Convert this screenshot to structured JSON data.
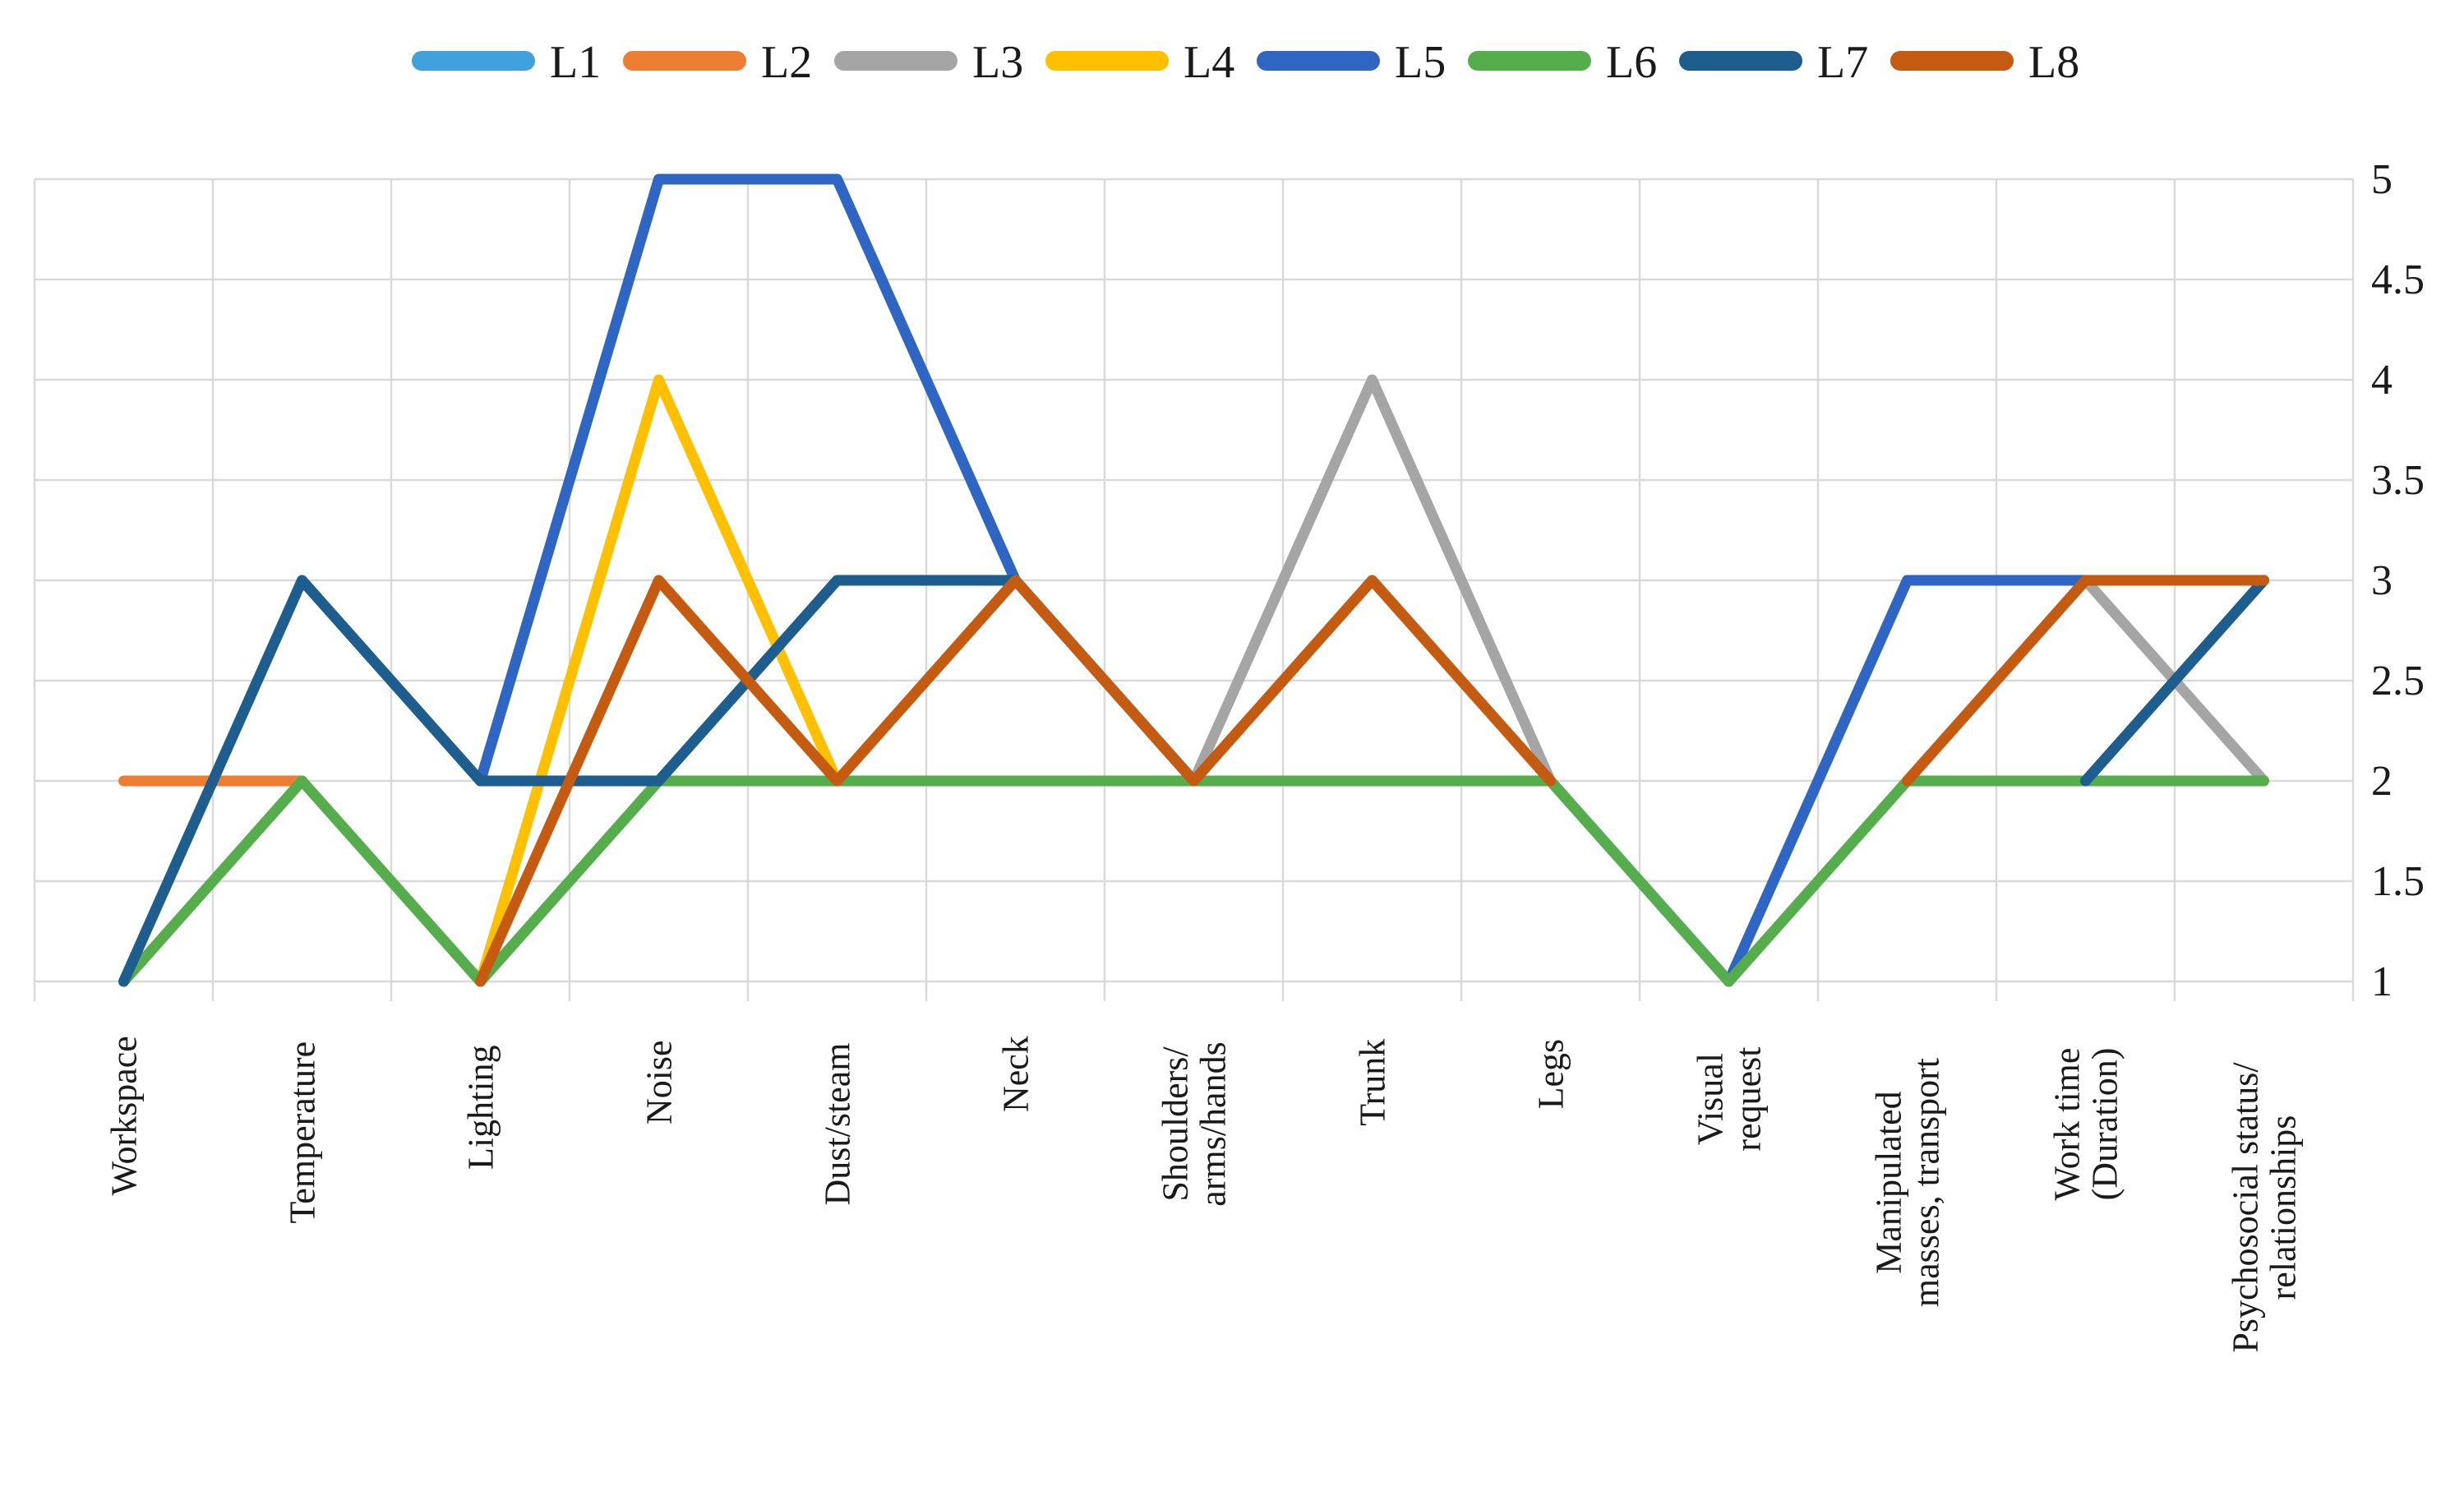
{
  "figure": {
    "background_color": "#FFFFFF",
    "gridline_color": "#D9D9D9",
    "text_color": "#1A1A1A"
  },
  "legend": {
    "position": "top",
    "items": [
      {
        "label": "L1",
        "color": "#41A1DC"
      },
      {
        "label": "L2",
        "color": "#ED7D31"
      },
      {
        "label": "L3",
        "color": "#A5A5A5"
      },
      {
        "label": "L4",
        "color": "#FFC000"
      },
      {
        "label": "L5",
        "color": "#2F66C4"
      },
      {
        "label": "L6",
        "color": "#55AD4B"
      },
      {
        "label": "L7",
        "color": "#1D5E8F"
      },
      {
        "label": "L8",
        "color": "#C55A11"
      }
    ]
  },
  "chart_data": {
    "type": "line",
    "title": "",
    "xlabel": "",
    "ylabel": "",
    "categories": [
      "Workspace",
      "Temperature",
      "Lighting",
      "Noise",
      "Dust/steam",
      "Neck",
      "Shoulders/ arms/hands",
      "Trunk",
      "Legs",
      "Visual request",
      "Manipulated masses, transport",
      "Work time (Duration)",
      "Psychosocial status/ relationships"
    ],
    "categories_display": [
      [
        "Workspace"
      ],
      [
        "Temperature"
      ],
      [
        "Lighting"
      ],
      [
        "Noise"
      ],
      [
        "Dust/steam"
      ],
      [
        "Neck"
      ],
      [
        "Shoulders/",
        "arms/hands"
      ],
      [
        "Trunk"
      ],
      [
        "Legs"
      ],
      [
        "Visual",
        "request"
      ],
      [
        "Manipulated",
        "masses, transport"
      ],
      [
        "Work time",
        "(Duration)"
      ],
      [
        "Psychosocial status/",
        "relationships"
      ]
    ],
    "series": [
      {
        "name": "L1",
        "color": "#41A1DC",
        "values": [
          null,
          null,
          2,
          5,
          5,
          3,
          2,
          2,
          2,
          1,
          3,
          3,
          3
        ]
      },
      {
        "name": "L2",
        "color": "#ED7D31",
        "values": [
          2,
          2,
          null,
          null,
          null,
          null,
          null,
          null,
          null,
          null,
          null,
          null,
          null
        ]
      },
      {
        "name": "L3",
        "color": "#A5A5A5",
        "values": [
          null,
          null,
          null,
          null,
          null,
          3,
          2,
          4,
          2,
          null,
          2,
          3,
          2
        ]
      },
      {
        "name": "L4",
        "color": "#FFC000",
        "values": [
          null,
          null,
          1,
          4,
          2,
          null,
          null,
          null,
          null,
          null,
          null,
          null,
          null
        ]
      },
      {
        "name": "L5",
        "color": "#2F66C4",
        "values": [
          null,
          null,
          2,
          5,
          5,
          3,
          2,
          2,
          2,
          1,
          3,
          3,
          3
        ]
      },
      {
        "name": "L6",
        "color": "#55AD4B",
        "values": [
          1,
          2,
          1,
          2,
          2,
          2,
          2,
          2,
          2,
          1,
          2,
          2,
          2
        ]
      },
      {
        "name": "L7",
        "color": "#1D5E8F",
        "values": [
          1,
          3,
          2,
          2,
          3,
          3,
          null,
          null,
          null,
          null,
          null,
          2,
          3
        ]
      },
      {
        "name": "L8",
        "color": "#C55A11",
        "values": [
          null,
          null,
          1,
          3,
          2,
          3,
          2,
          3,
          2,
          null,
          2,
          3,
          3
        ]
      }
    ],
    "ylim": [
      1,
      5
    ],
    "y_ticks": [
      5,
      4.5,
      4,
      3.5,
      3,
      2.5,
      2,
      1.5,
      1
    ],
    "y_tick_labels": [
      "5",
      "4.5",
      "4",
      "3.5",
      "3",
      "2.5",
      "2",
      "1.5",
      "1"
    ],
    "y_axis_side": "right",
    "grid": true,
    "legend_position": "top",
    "x_label_rotation": -90
  }
}
